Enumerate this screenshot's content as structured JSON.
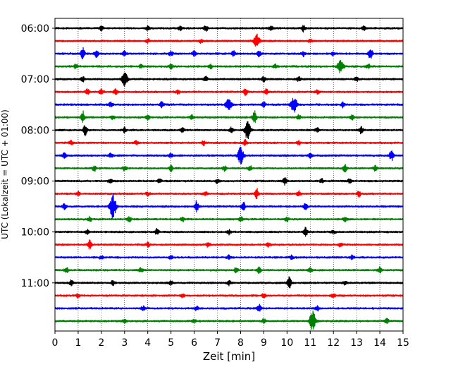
{
  "chart_data": {
    "type": "line",
    "chart_kind": "helicorder seismogram (stacked traces)",
    "xlabel": "Zeit  [min]",
    "ylabel": "UTC (Lokalzeit = UTC + 01:00)",
    "xlim": [
      0,
      15
    ],
    "x_ticks": [
      0,
      1,
      2,
      3,
      4,
      5,
      6,
      7,
      8,
      9,
      10,
      11,
      12,
      13,
      14,
      15
    ],
    "x_tick_labels": [
      "0",
      "1",
      "2",
      "3",
      "4",
      "5",
      "6",
      "7",
      "8",
      "9",
      "10",
      "11",
      "12",
      "13",
      "14",
      "15"
    ],
    "grid": "vertical dotted lines at each minute",
    "minutes_per_trace": 15,
    "hour_labels": [
      "06:00",
      "07:00",
      "08:00",
      "09:00",
      "10:00",
      "11:00"
    ],
    "trace_color_cycle": [
      "#000000",
      "#ff0000",
      "#0000ff",
      "#008000"
    ],
    "traces": [
      {
        "start": "06:00",
        "color": "#000000",
        "bursts": [
          {
            "t": 2.0,
            "a": 0.35
          },
          {
            "t": 4.0,
            "a": 0.4
          },
          {
            "t": 5.4,
            "a": 0.35
          },
          {
            "t": 6.5,
            "a": 0.5
          },
          {
            "t": 9.3,
            "a": 0.35
          },
          {
            "t": 10.7,
            "a": 0.55
          },
          {
            "t": 13.3,
            "a": 0.35
          }
        ]
      },
      {
        "start": "06:15",
        "color": "#ff0000",
        "bursts": [
          {
            "t": 4.0,
            "a": 0.3
          },
          {
            "t": 6.3,
            "a": 0.3
          },
          {
            "t": 8.7,
            "a": 1.1
          },
          {
            "t": 11.0,
            "a": 0.3
          }
        ]
      },
      {
        "start": "06:30",
        "color": "#0000ff",
        "bursts": [
          {
            "t": 1.2,
            "a": 1.0
          },
          {
            "t": 1.8,
            "a": 0.6
          },
          {
            "t": 3.0,
            "a": 0.4
          },
          {
            "t": 5.0,
            "a": 0.4
          },
          {
            "t": 6.0,
            "a": 0.4
          },
          {
            "t": 7.7,
            "a": 0.4
          },
          {
            "t": 8.8,
            "a": 0.4
          },
          {
            "t": 10.7,
            "a": 0.4
          },
          {
            "t": 12.0,
            "a": 0.3
          },
          {
            "t": 13.6,
            "a": 1.0
          }
        ]
      },
      {
        "start": "06:45",
        "color": "#008000",
        "bursts": [
          {
            "t": 0.9,
            "a": 0.35
          },
          {
            "t": 3.7,
            "a": 0.3
          },
          {
            "t": 5.0,
            "a": 0.35
          },
          {
            "t": 6.7,
            "a": 0.35
          },
          {
            "t": 9.5,
            "a": 0.3
          },
          {
            "t": 12.3,
            "a": 1.1
          },
          {
            "t": 13.5,
            "a": 0.35
          }
        ]
      },
      {
        "start": "07:00",
        "color": "#000000",
        "bursts": [
          {
            "t": 1.2,
            "a": 0.35
          },
          {
            "t": 3.0,
            "a": 1.2
          },
          {
            "t": 6.5,
            "a": 0.45
          },
          {
            "t": 9.0,
            "a": 0.4
          },
          {
            "t": 10.5,
            "a": 0.35
          },
          {
            "t": 13.0,
            "a": 0.35
          }
        ]
      },
      {
        "start": "07:15",
        "color": "#ff0000",
        "bursts": [
          {
            "t": 1.4,
            "a": 0.4
          },
          {
            "t": 2.0,
            "a": 0.45
          },
          {
            "t": 2.6,
            "a": 0.5
          },
          {
            "t": 5.3,
            "a": 0.35
          },
          {
            "t": 8.2,
            "a": 0.55
          },
          {
            "t": 9.1,
            "a": 0.4
          },
          {
            "t": 11.3,
            "a": 0.35
          }
        ]
      },
      {
        "start": "07:30",
        "color": "#0000ff",
        "bursts": [
          {
            "t": 2.4,
            "a": 0.35
          },
          {
            "t": 4.6,
            "a": 0.45
          },
          {
            "t": 7.5,
            "a": 1.1
          },
          {
            "t": 9.0,
            "a": 0.4
          },
          {
            "t": 10.3,
            "a": 1.4
          },
          {
            "t": 12.4,
            "a": 0.4
          }
        ]
      },
      {
        "start": "07:45",
        "color": "#008000",
        "bursts": [
          {
            "t": 1.2,
            "a": 1.0
          },
          {
            "t": 2.5,
            "a": 0.35
          },
          {
            "t": 4.0,
            "a": 0.4
          },
          {
            "t": 5.9,
            "a": 0.35
          },
          {
            "t": 8.6,
            "a": 1.0
          },
          {
            "t": 10.5,
            "a": 0.4
          },
          {
            "t": 12.8,
            "a": 0.35
          }
        ]
      },
      {
        "start": "08:00",
        "color": "#000000",
        "bursts": [
          {
            "t": 1.3,
            "a": 0.8
          },
          {
            "t": 3.0,
            "a": 0.4
          },
          {
            "t": 5.5,
            "a": 0.35
          },
          {
            "t": 7.6,
            "a": 0.6
          },
          {
            "t": 8.3,
            "a": 1.4
          },
          {
            "t": 11.3,
            "a": 0.35
          },
          {
            "t": 13.2,
            "a": 0.55
          }
        ]
      },
      {
        "start": "08:15",
        "color": "#ff0000",
        "bursts": [
          {
            "t": 0.7,
            "a": 0.3
          },
          {
            "t": 3.5,
            "a": 0.35
          },
          {
            "t": 6.4,
            "a": 0.35
          },
          {
            "t": 8.2,
            "a": 0.45
          },
          {
            "t": 10.5,
            "a": 0.3
          }
        ]
      },
      {
        "start": "08:30",
        "color": "#0000ff",
        "bursts": [
          {
            "t": 0.4,
            "a": 0.4
          },
          {
            "t": 2.4,
            "a": 0.35
          },
          {
            "t": 5.0,
            "a": 0.35
          },
          {
            "t": 8.0,
            "a": 1.3
          },
          {
            "t": 11.0,
            "a": 0.35
          },
          {
            "t": 14.5,
            "a": 0.8
          }
        ]
      },
      {
        "start": "08:45",
        "color": "#008000",
        "bursts": [
          {
            "t": 1.7,
            "a": 0.45
          },
          {
            "t": 3.0,
            "a": 0.4
          },
          {
            "t": 5.0,
            "a": 0.5
          },
          {
            "t": 7.3,
            "a": 0.4
          },
          {
            "t": 8.4,
            "a": 0.4
          },
          {
            "t": 12.5,
            "a": 0.55
          },
          {
            "t": 13.8,
            "a": 0.4
          }
        ]
      },
      {
        "start": "09:00",
        "color": "#000000",
        "bursts": [
          {
            "t": 2.4,
            "a": 0.35
          },
          {
            "t": 4.5,
            "a": 0.35
          },
          {
            "t": 7.0,
            "a": 0.35
          },
          {
            "t": 9.9,
            "a": 0.6
          },
          {
            "t": 11.5,
            "a": 0.35
          },
          {
            "t": 12.7,
            "a": 0.35
          }
        ]
      },
      {
        "start": "09:15",
        "color": "#ff0000",
        "bursts": [
          {
            "t": 1.0,
            "a": 0.3
          },
          {
            "t": 4.0,
            "a": 0.3
          },
          {
            "t": 6.5,
            "a": 0.3
          },
          {
            "t": 8.7,
            "a": 0.8
          },
          {
            "t": 10.5,
            "a": 0.4
          },
          {
            "t": 13.1,
            "a": 0.45
          }
        ]
      },
      {
        "start": "09:30",
        "color": "#0000ff",
        "bursts": [
          {
            "t": 0.4,
            "a": 0.45
          },
          {
            "t": 2.5,
            "a": 2.0
          },
          {
            "t": 6.1,
            "a": 0.9
          },
          {
            "t": 8.1,
            "a": 0.8
          },
          {
            "t": 10.8,
            "a": 0.5
          }
        ]
      },
      {
        "start": "09:45",
        "color": "#008000",
        "bursts": [
          {
            "t": 1.5,
            "a": 0.4
          },
          {
            "t": 3.2,
            "a": 0.4
          },
          {
            "t": 5.5,
            "a": 0.35
          },
          {
            "t": 8.0,
            "a": 0.4
          },
          {
            "t": 10.0,
            "a": 0.35
          },
          {
            "t": 12.5,
            "a": 0.35
          }
        ]
      },
      {
        "start": "10:00",
        "color": "#000000",
        "bursts": [
          {
            "t": 1.4,
            "a": 0.35
          },
          {
            "t": 4.4,
            "a": 0.45
          },
          {
            "t": 7.5,
            "a": 0.35
          },
          {
            "t": 10.8,
            "a": 0.7
          },
          {
            "t": 12.0,
            "a": 0.3
          }
        ]
      },
      {
        "start": "10:15",
        "color": "#ff0000",
        "bursts": [
          {
            "t": 1.5,
            "a": 0.7
          },
          {
            "t": 4.0,
            "a": 0.35
          },
          {
            "t": 6.6,
            "a": 0.35
          },
          {
            "t": 9.2,
            "a": 0.35
          },
          {
            "t": 12.3,
            "a": 0.35
          }
        ]
      },
      {
        "start": "10:30",
        "color": "#0000ff",
        "bursts": [
          {
            "t": 2.0,
            "a": 0.3
          },
          {
            "t": 5.0,
            "a": 0.3
          },
          {
            "t": 7.5,
            "a": 0.35
          },
          {
            "t": 10.2,
            "a": 0.3
          },
          {
            "t": 12.8,
            "a": 0.3
          }
        ]
      },
      {
        "start": "10:45",
        "color": "#008000",
        "bursts": [
          {
            "t": 0.5,
            "a": 0.35
          },
          {
            "t": 3.7,
            "a": 0.35
          },
          {
            "t": 7.8,
            "a": 0.4
          },
          {
            "t": 8.8,
            "a": 0.45
          },
          {
            "t": 11.0,
            "a": 0.35
          },
          {
            "t": 14.0,
            "a": 0.45
          }
        ]
      },
      {
        "start": "11:00",
        "color": "#000000",
        "bursts": [
          {
            "t": 0.7,
            "a": 0.45
          },
          {
            "t": 2.5,
            "a": 0.35
          },
          {
            "t": 5.0,
            "a": 0.35
          },
          {
            "t": 7.5,
            "a": 0.35
          },
          {
            "t": 10.1,
            "a": 0.9
          },
          {
            "t": 12.5,
            "a": 0.3
          }
        ]
      },
      {
        "start": "11:15",
        "color": "#ff0000",
        "bursts": [
          {
            "t": 1.0,
            "a": 0.3
          },
          {
            "t": 5.5,
            "a": 0.3
          },
          {
            "t": 9.0,
            "a": 0.3
          },
          {
            "t": 12.0,
            "a": 0.3
          }
        ]
      },
      {
        "start": "11:30",
        "color": "#0000ff",
        "bursts": [
          {
            "t": 3.8,
            "a": 0.35
          },
          {
            "t": 6.1,
            "a": 0.35
          },
          {
            "t": 8.8,
            "a": 0.6
          },
          {
            "t": 11.3,
            "a": 0.35
          }
        ]
      },
      {
        "start": "11:45",
        "color": "#008000",
        "bursts": [
          {
            "t": 3.0,
            "a": 0.3
          },
          {
            "t": 6.0,
            "a": 0.3
          },
          {
            "t": 9.0,
            "a": 0.3
          },
          {
            "t": 11.1,
            "a": 1.6
          },
          {
            "t": 14.3,
            "a": 0.45
          }
        ]
      }
    ]
  }
}
